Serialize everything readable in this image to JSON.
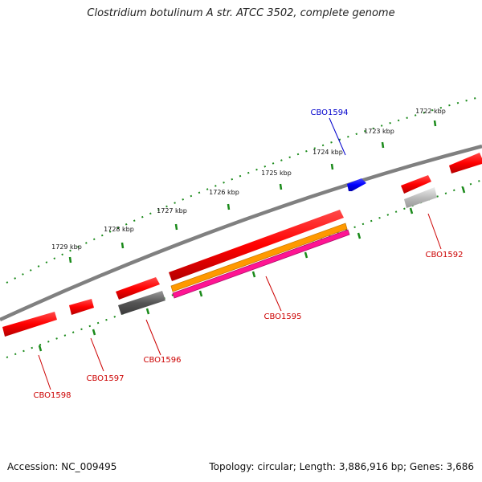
{
  "title": "Clostridium botulinum A str. ATCC 3502, complete genome",
  "footer": {
    "accession": "Accession: NC_009495",
    "topology": "Topology: circular; Length: 3,886,916 bp; Genes: 3,686"
  },
  "ruler_labels": [
    "1722 kbp",
    "1723 kbp",
    "1724 kbp",
    "1725 kbp",
    "1726 kbp",
    "1727 kbp",
    "1728 kbp",
    "1729 kbp"
  ],
  "gene_labels": [
    "CBO1594",
    "CBO1592",
    "CBO1595",
    "CBO1596",
    "CBO1597",
    "CBO1598"
  ],
  "colors": {
    "backbone": "#808080",
    "tick": "#1a8a1a",
    "gene_forward": "#ff0000",
    "gene_highlight": "#0000ff",
    "label_red": "#cc0000",
    "label_blue": "#0000cc",
    "orange": "#ff9900",
    "magenta": "#ff1493",
    "dark_gray": "#555555",
    "light_gray": "#bbbbbb"
  }
}
